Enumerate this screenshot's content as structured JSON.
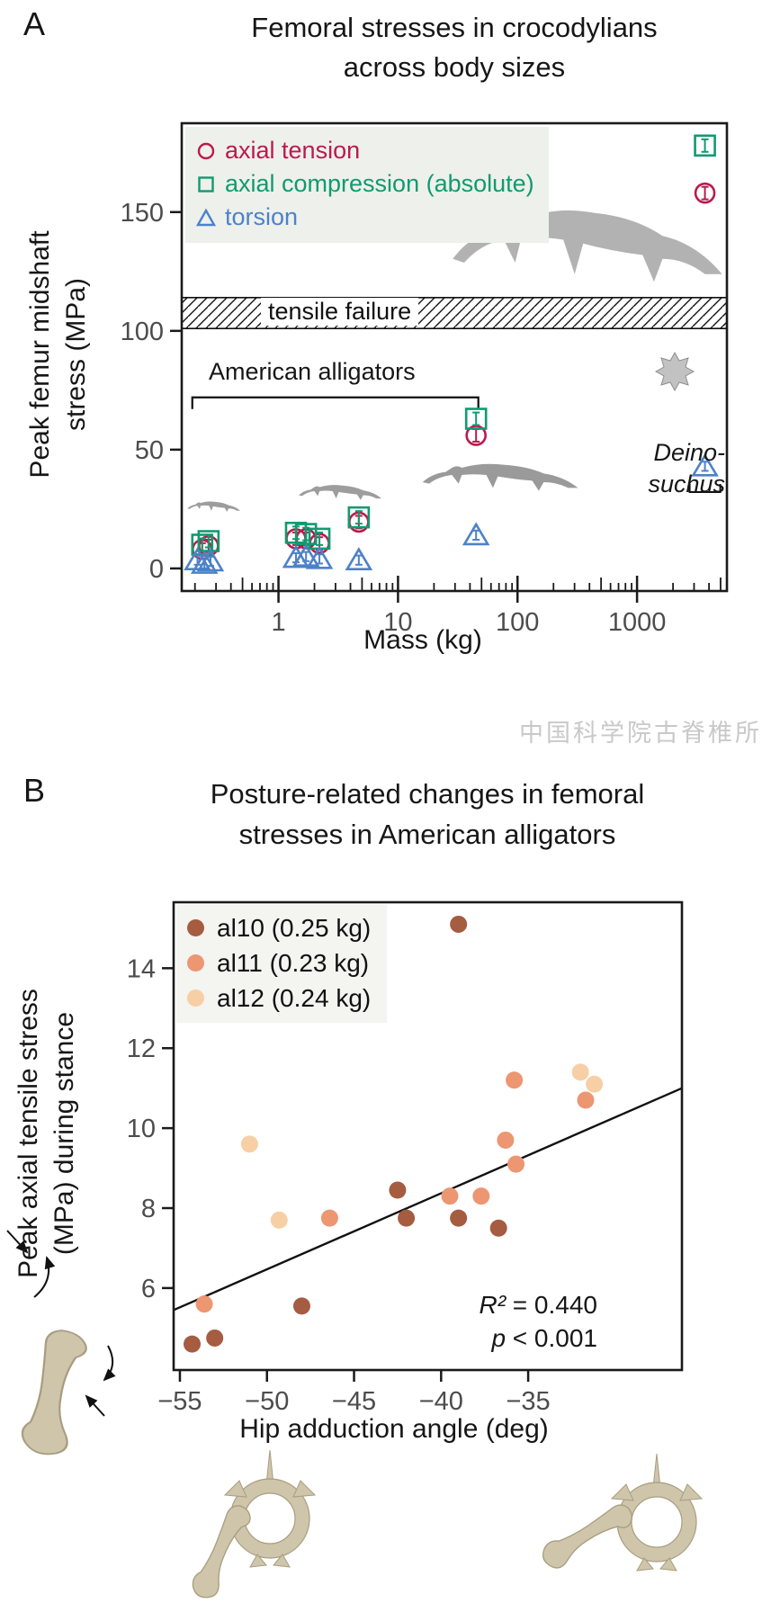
{
  "figure": {
    "panelA": {
      "label": "A",
      "title1": "Femoral stresses in crocodylians",
      "title2": "across body sizes",
      "ylabel1": "Peak femur midshaft",
      "ylabel2": "stress (MPa)",
      "xlabel": "Mass (kg)",
      "band_label": "tensile failure",
      "bracket_label": "American alligators",
      "deino1": "Deino-",
      "deino2": "suchus",
      "legend": [
        {
          "label": "axial tension",
          "marker": "circle",
          "color": "#bb1a4d"
        },
        {
          "label": "axial compression (absolute)",
          "marker": "square",
          "color": "#0f9b6f"
        },
        {
          "label": "torsion",
          "marker": "triangle",
          "color": "#4d82c8"
        }
      ],
      "illustrations": [
        "alligator-silhouette-tiny",
        "alligator-silhouette-small",
        "alligator-silhouette-medium",
        "crocodylian-silhouette-large",
        "osteoderm-icon"
      ],
      "chart_data": {
        "type": "scatter",
        "title": "Femoral stresses in crocodylians across body sizes",
        "xlabel": "Mass (kg)",
        "ylabel": "Peak femur midshaft stress (MPa)",
        "x_scale": "log",
        "xlim": [
          0.155,
          5650
        ],
        "ylim": [
          -9.5,
          187.4
        ],
        "x_ticks": [
          1,
          10,
          100,
          1000
        ],
        "y_ticks": [
          0,
          50,
          100,
          150
        ],
        "grid": false,
        "legend_position": "top-left",
        "failure_band": {
          "label": "tensile failure",
          "y_min": 101,
          "y_max": 114
        },
        "alligator_bracket": {
          "label": "American alligators",
          "x_min_kg": 0.19,
          "x_max_kg": 47,
          "y_mpa": 72
        },
        "deinosuchus_group": {
          "label": "Deinosuchus",
          "mass_kg": 3700
        },
        "series": [
          {
            "name": "axial tension",
            "marker": "circle",
            "color": "#bb1a4d",
            "error_mpa": 1.5,
            "points": [
              [
                0.23,
                8
              ],
              [
                0.26,
                9.5
              ],
              [
                1.4,
                12.5
              ],
              [
                1.7,
                12.5
              ],
              [
                2.2,
                10.5
              ],
              [
                4.7,
                19.5
              ],
              [
                45,
                56
              ],
              [
                3700,
                158
              ]
            ]
          },
          {
            "name": "axial compression (absolute)",
            "marker": "square",
            "color": "#0f9b6f",
            "error_mpa": 1.5,
            "points": [
              [
                0.23,
                10
              ],
              [
                0.26,
                11.5
              ],
              [
                1.4,
                15
              ],
              [
                1.7,
                14.5
              ],
              [
                2.2,
                12.5
              ],
              [
                4.7,
                21.5
              ],
              [
                45,
                63
              ],
              [
                3700,
                178
              ]
            ]
          },
          {
            "name": "torsion",
            "marker": "triangle",
            "color": "#4d82c8",
            "error_mpa": 0.8,
            "points": [
              [
                0.21,
                3.5
              ],
              [
                0.24,
                2
              ],
              [
                0.27,
                3
              ],
              [
                1.4,
                4.5
              ],
              [
                1.7,
                5
              ],
              [
                2.2,
                4
              ],
              [
                4.7,
                3.5
              ],
              [
                45,
                14
              ],
              [
                3700,
                43
              ]
            ]
          }
        ]
      }
    },
    "watermark": "中国科学院古脊椎所",
    "panelB": {
      "label": "B",
      "title1": "Posture-related changes in femoral",
      "title2": "stresses in American alligators",
      "ylabel1": "Peak axial tensile stress",
      "ylabel2": "(MPa) during stance",
      "xlabel": "Hip adduction angle (deg)",
      "r2_label": "R²",
      "r2_value": " = 0.440",
      "p_label": "p",
      "p_value": " < 0.001",
      "legend": [
        {
          "label": "al10 (0.25 kg)",
          "color": "#a55c41"
        },
        {
          "label": "al11 (0.23 kg)",
          "color": "#ec9672"
        },
        {
          "label": "al12 (0.24 kg)",
          "color": "#f7cfa5"
        }
      ],
      "illustrations": [
        "femur-load-arrows",
        "pelvis-femur-adducted",
        "pelvis-femur-abducted"
      ],
      "chart_data": {
        "type": "scatter",
        "title": "Posture-related changes in femoral stresses in American alligators",
        "xlabel": "Hip adduction angle (deg)",
        "ylabel": "Peak axial tensile stress (MPa) during stance",
        "xlim": [
          -55.36,
          -26.17
        ],
        "ylim": [
          3.95,
          15.65
        ],
        "x_ticks": [
          -55,
          -50,
          -45,
          -40,
          -35
        ],
        "y_ticks": [
          6,
          8,
          10,
          12,
          14
        ],
        "grid": false,
        "legend_position": "top-left",
        "regression": {
          "x1": -55.36,
          "y1": 5.45,
          "x2": -26.17,
          "y2": 11.0,
          "r_squared": 0.44,
          "p": "< 0.001"
        },
        "series": [
          {
            "name": "al10 (0.25 kg)",
            "color": "#a55c41",
            "points": [
              [
                -39,
                15.1
              ],
              [
                -42.5,
                8.45
              ],
              [
                -42,
                7.75
              ],
              [
                -39,
                7.75
              ],
              [
                -36.7,
                7.5
              ],
              [
                -48,
                5.55
              ],
              [
                -53,
                4.75
              ],
              [
                -54.3,
                4.6
              ]
            ]
          },
          {
            "name": "al11 (0.23 kg)",
            "color": "#ec9672",
            "points": [
              [
                -35.8,
                11.2
              ],
              [
                -31.7,
                10.7
              ],
              [
                -36.3,
                9.7
              ],
              [
                -35.7,
                9.1
              ],
              [
                -39.5,
                8.3
              ],
              [
                -37.7,
                8.3
              ],
              [
                -46.4,
                7.75
              ],
              [
                -53.6,
                5.6
              ]
            ]
          },
          {
            "name": "al12 (0.24 kg)",
            "color": "#f7cfa5",
            "points": [
              [
                -51,
                9.6
              ],
              [
                -32,
                11.4
              ],
              [
                -31.2,
                11.1
              ],
              [
                -49.3,
                7.7
              ]
            ]
          }
        ]
      }
    }
  }
}
